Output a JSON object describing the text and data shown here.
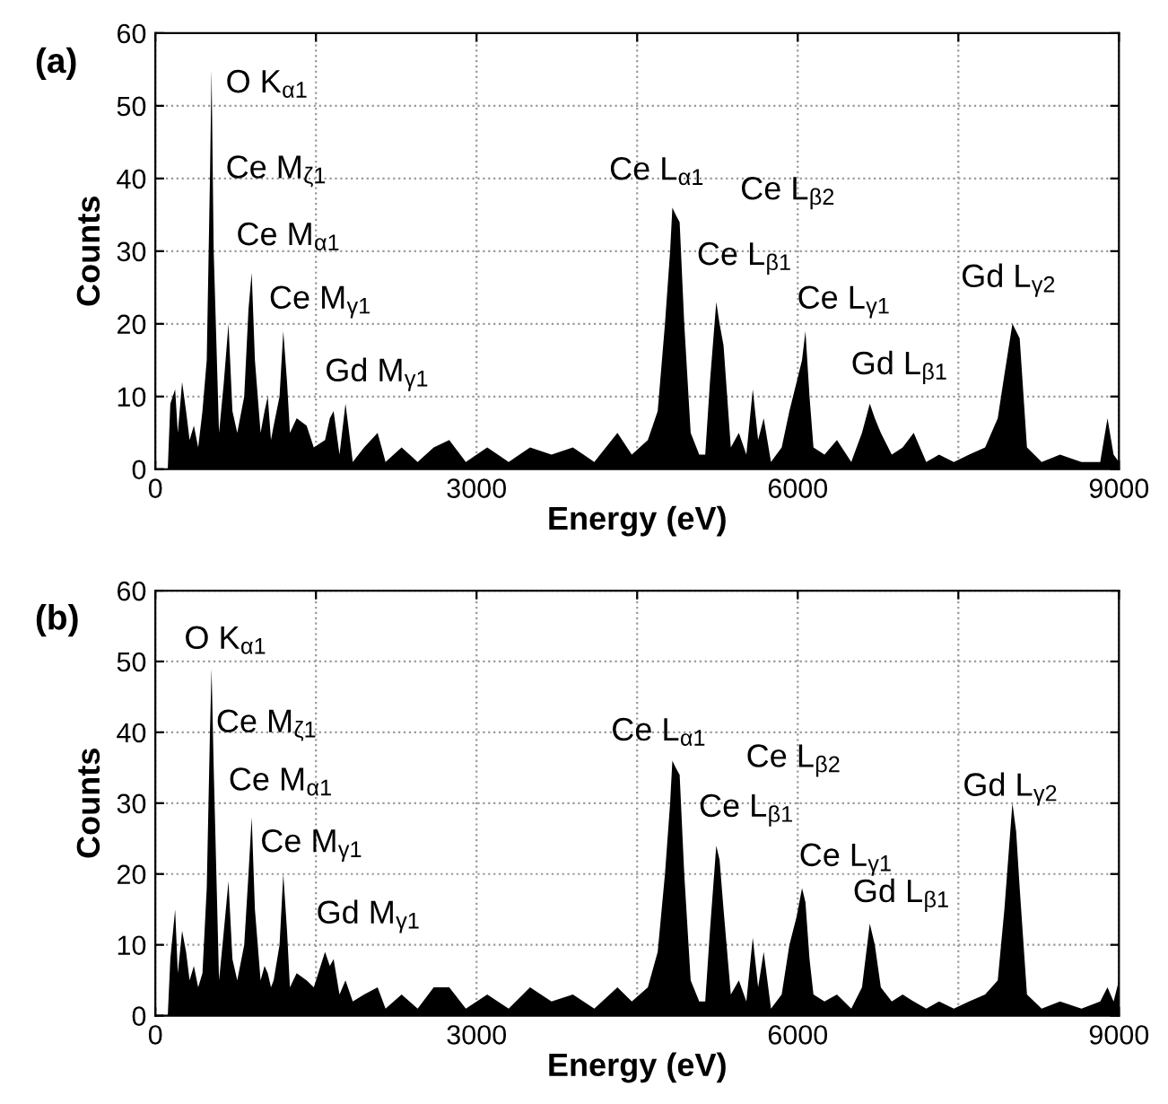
{
  "chart_data": [
    {
      "type": "area",
      "title": "(a)",
      "xlabel": "Energy (eV)",
      "ylabel": "Counts",
      "color": "#000000",
      "x": [
        0,
        116,
        140,
        185,
        210,
        250,
        287,
        320,
        360,
        400,
        440,
        480,
        510,
        525,
        545,
        595,
        640,
        683,
        720,
        765,
        830,
        870,
        900,
        930,
        983,
        1020,
        1050,
        1080,
        1105,
        1160,
        1195,
        1230,
        1257,
        1320,
        1413,
        1480,
        1585,
        1630,
        1665,
        1720,
        1776,
        1844,
        1950,
        2076,
        2150,
        2300,
        2450,
        2600,
        2745,
        2900,
        3100,
        3300,
        3500,
        3700,
        3900,
        4100,
        4316,
        4450,
        4600,
        4692,
        4760,
        4808,
        4829,
        4860,
        4897,
        4940,
        5000,
        5080,
        5136,
        5180,
        5239,
        5270,
        5307,
        5375,
        5450,
        5520,
        5580,
        5630,
        5682,
        5750,
        5850,
        5922,
        5990,
        6040,
        6072,
        6110,
        6147,
        6250,
        6366,
        6500,
        6600,
        6673,
        6720,
        6776,
        6878,
        6980,
        7083,
        7200,
        7320,
        7458,
        7600,
        7750,
        7868,
        7930,
        8005,
        8040,
        8073,
        8141,
        8278,
        8450,
        8650,
        8825,
        8893,
        8950,
        9000
      ],
      "values": [
        0,
        0,
        9,
        11,
        5,
        12,
        8,
        4,
        6,
        3,
        8,
        15,
        40,
        55,
        30,
        5,
        12,
        20,
        8,
        5,
        10,
        22,
        27,
        15,
        5,
        8,
        10,
        4,
        6,
        10,
        19,
        12,
        5,
        7,
        6,
        3,
        4,
        7,
        8,
        2,
        9,
        1,
        3,
        5,
        1,
        3,
        1,
        3,
        4,
        1,
        3,
        1,
        3,
        2,
        3,
        1,
        5,
        2,
        4,
        8,
        20,
        30,
        36,
        35,
        34,
        20,
        5,
        2,
        2,
        12,
        23,
        20,
        17,
        3,
        5,
        2,
        11,
        4,
        7,
        1,
        3,
        8,
        12,
        15,
        19,
        10,
        3,
        2,
        4,
        1,
        5,
        9,
        7,
        5,
        2,
        3,
        5,
        1,
        2,
        1,
        2,
        3,
        7,
        13,
        20,
        19,
        18,
        3,
        1,
        2,
        1,
        1,
        7,
        2,
        1
      ],
      "xlim": [
        0,
        9000
      ],
      "ylim": [
        0,
        60
      ],
      "xticks": [
        0,
        {
          "value": 1500,
          "label": null
        },
        3000,
        {
          "value": 4500,
          "label": null
        },
        6000,
        {
          "value": 7500,
          "label": null
        },
        9000
      ],
      "yticks": [
        0,
        10,
        20,
        30,
        40,
        50,
        60
      ],
      "grid": true,
      "annotations": [
        "O K$_{α1}$",
        "Ce M$_{ζ1}$",
        "Ce M$_{α1}$",
        "Ce M$_{γ1}$",
        "Gd M$_{γ1}$",
        "Ce L$_{α1}$",
        "Ce L$_{β2}$",
        "Ce L$_{β1}$",
        "Ce L$_{γ1}$",
        "Gd L$_{β1}$",
        "Gd L$_{γ2}$"
      ]
    },
    {
      "type": "area",
      "title": "(b)",
      "xlabel": "Energy (eV)",
      "ylabel": "Counts",
      "color": "#000000",
      "x": [
        0,
        116,
        140,
        185,
        210,
        250,
        287,
        320,
        360,
        400,
        440,
        480,
        510,
        525,
        545,
        595,
        640,
        683,
        720,
        765,
        830,
        870,
        900,
        930,
        983,
        1020,
        1050,
        1080,
        1105,
        1160,
        1195,
        1230,
        1257,
        1320,
        1413,
        1480,
        1585,
        1630,
        1665,
        1720,
        1776,
        1844,
        1950,
        2076,
        2150,
        2300,
        2450,
        2600,
        2745,
        2900,
        3100,
        3300,
        3500,
        3700,
        3900,
        4100,
        4316,
        4450,
        4600,
        4692,
        4760,
        4808,
        4829,
        4860,
        4897,
        4940,
        5000,
        5080,
        5136,
        5180,
        5239,
        5270,
        5307,
        5375,
        5450,
        5520,
        5580,
        5630,
        5682,
        5750,
        5850,
        5922,
        5990,
        6040,
        6072,
        6110,
        6147,
        6250,
        6366,
        6500,
        6600,
        6673,
        6720,
        6776,
        6878,
        6980,
        7083,
        7200,
        7320,
        7458,
        7600,
        7750,
        7868,
        7930,
        8005,
        8040,
        8073,
        8141,
        8278,
        8450,
        8650,
        8825,
        8893,
        8950,
        9000
      ],
      "values": [
        0,
        0,
        8,
        15,
        6,
        12,
        9,
        5,
        7,
        4,
        6,
        18,
        40,
        49,
        35,
        5,
        12,
        19,
        8,
        5,
        10,
        20,
        28,
        15,
        5,
        7,
        6,
        4,
        5,
        10,
        20,
        12,
        4,
        6,
        5,
        4,
        9,
        7,
        8,
        3,
        5,
        2,
        3,
        4,
        1,
        3,
        1,
        4,
        4,
        1,
        3,
        1,
        4,
        2,
        3,
        1,
        4,
        2,
        4,
        9,
        20,
        30,
        36,
        35,
        34,
        20,
        5,
        2,
        2,
        12,
        24,
        22,
        15,
        3,
        5,
        2,
        11,
        4,
        9,
        1,
        3,
        10,
        14,
        18,
        16,
        8,
        3,
        2,
        3,
        1,
        4,
        13,
        10,
        4,
        2,
        3,
        2,
        1,
        2,
        1,
        2,
        3,
        5,
        15,
        30,
        26,
        18,
        3,
        1,
        2,
        1,
        2,
        4,
        2,
        5
      ],
      "xlim": [
        0,
        9000
      ],
      "ylim": [
        0,
        60
      ],
      "xticks": [
        0,
        {
          "value": 1500,
          "label": null
        },
        3000,
        {
          "value": 4500,
          "label": null
        },
        6000,
        {
          "value": 7500,
          "label": null
        },
        9000
      ],
      "yticks": [
        0,
        10,
        20,
        30,
        40,
        50,
        60
      ],
      "grid": true,
      "annotations": [
        "O K$_{α1}$",
        "Ce M$_{ζ1}$",
        "Ce M$_{α1}$",
        "Ce M$_{γ1}$",
        "Gd M$_{γ1}$",
        "Ce L$_{α1}$",
        "Ce L$_{β2}$",
        "Ce L$_{β1}$",
        "Ce L$_{γ1}$",
        "Gd L$_{β1}$",
        "Gd L$_{γ2}$"
      ]
    }
  ]
}
